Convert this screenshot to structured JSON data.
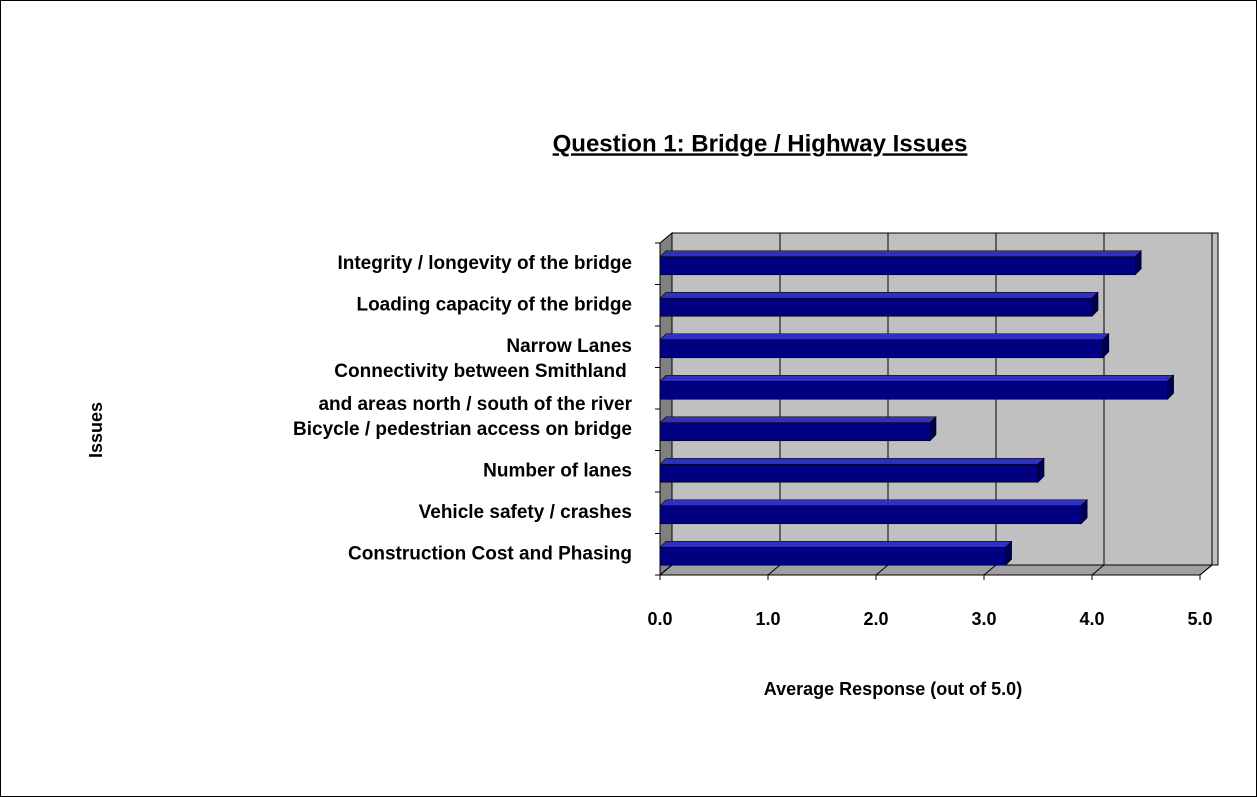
{
  "chart_data": {
    "type": "bar",
    "orientation": "horizontal",
    "title": "Question 1: Bridge / Highway Issues",
    "x_label": "Average Response  (out of 5.0)",
    "y_label": "Issues",
    "categories": [
      "Integrity / longevity of the bridge",
      "Loading capacity of the bridge",
      "Narrow Lanes",
      "Connectivity between Smithland \nand areas north / south of the river",
      "Bicycle / pedestrian access on bridge",
      "Number of lanes",
      "Vehicle safety  / crashes",
      "Construction  Cost and Phasing"
    ],
    "values": [
      4.4,
      4.0,
      4.1,
      4.7,
      2.5,
      3.5,
      3.9,
      3.2
    ],
    "color": "#000080",
    "xlim": [
      0,
      5
    ],
    "xticks": [
      {
        "value": 0,
        "label": "0.0"
      },
      {
        "value": 1,
        "label": "1.0"
      },
      {
        "value": 2,
        "label": "2.0"
      },
      {
        "value": 3,
        "label": "3.0"
      },
      {
        "value": 4,
        "label": "4.0"
      },
      {
        "value": 5,
        "label": "5.0"
      }
    ],
    "grid": true
  }
}
